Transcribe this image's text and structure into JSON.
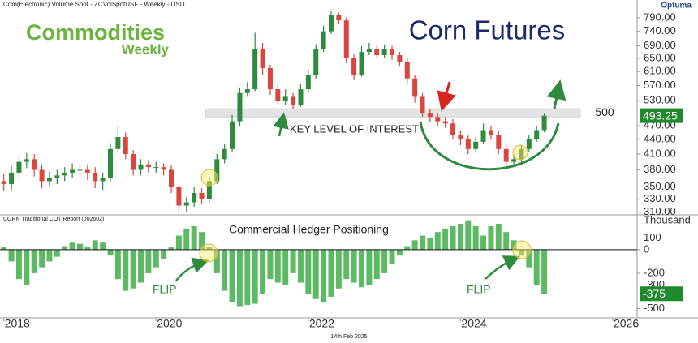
{
  "header": {
    "source": "Com(Electronic) Volume Spot - ZCVolSpotUSF - Weekly - USD",
    "brand": "Optuma",
    "logo_main": "Commodities",
    "logo_sub": "Weekly",
    "date": "14th Feb 2025"
  },
  "chart_data": [
    {
      "type": "candlestick",
      "title": "Corn Futures",
      "annotations": [
        "KEY LEVEL OF INTEREST"
      ],
      "key_level": 500,
      "log": true,
      "up_color": "#2e8b3e",
      "down_color": "#d9453f",
      "xlim": [
        2017.95,
        2026.32
      ],
      "ylim": [
        306,
        834
      ],
      "yticks": [
        {
          "value": 310,
          "label": "310.00"
        },
        {
          "value": 330,
          "label": "330.00"
        },
        {
          "value": 350,
          "label": "350.00"
        },
        {
          "value": 380,
          "label": "380.00"
        },
        {
          "value": 410,
          "label": "410.00"
        },
        {
          "value": 440,
          "label": "440.00"
        },
        {
          "value": 470,
          "label": "470.00"
        },
        {
          "value": 530,
          "label": "530.00"
        },
        {
          "value": 570,
          "label": "570.00"
        },
        {
          "value": 610,
          "label": "610.00"
        },
        {
          "value": 650,
          "label": "650.00"
        },
        {
          "value": 690,
          "label": "690.00"
        },
        {
          "value": 740,
          "label": "740.00"
        },
        {
          "value": 790,
          "label": "790.00"
        }
      ],
      "x": [
        2018,
        2018.1,
        2018.2,
        2018.3,
        2018.4,
        2018.5,
        2018.6,
        2018.7,
        2018.8,
        2018.9,
        2019,
        2019.1,
        2019.2,
        2019.3,
        2019.4,
        2019.5,
        2019.6,
        2019.7,
        2019.8,
        2019.9,
        2020,
        2020.1,
        2020.2,
        2020.3,
        2020.4,
        2020.5,
        2020.6,
        2020.7,
        2020.8,
        2020.9,
        2021,
        2021.1,
        2021.2,
        2021.3,
        2021.4,
        2021.5,
        2021.6,
        2021.7,
        2021.8,
        2021.9,
        2022,
        2022.1,
        2022.2,
        2022.3,
        2022.4,
        2022.5,
        2022.6,
        2022.7,
        2022.8,
        2022.9,
        2023,
        2023.1,
        2023.2,
        2023.3,
        2023.4,
        2023.5,
        2023.6,
        2023.7,
        2023.8,
        2023.9,
        2024,
        2024.1,
        2024.2,
        2024.3,
        2024.4,
        2024.5,
        2024.6,
        2024.7,
        2024.8,
        2024.9,
        2025,
        2025.1
      ],
      "open": [
        360,
        355,
        375,
        395,
        400,
        380,
        360,
        365,
        370,
        375,
        380,
        380,
        375,
        360,
        365,
        420,
        445,
        410,
        380,
        390,
        385,
        385,
        380,
        350,
        320,
        325,
        340,
        330,
        360,
        400,
        420,
        480,
        550,
        560,
        680,
        620,
        560,
        530,
        540,
        520,
        560,
        600,
        680,
        740,
        800,
        780,
        650,
        600,
        670,
        680,
        660,
        680,
        660,
        640,
        590,
        540,
        500,
        490,
        480,
        475,
        450,
        440,
        420,
        435,
        460,
        450,
        420,
        395,
        400,
        420,
        440,
        460
      ],
      "high": [
        372,
        387,
        407,
        412,
        410,
        390,
        377,
        380,
        385,
        392,
        392,
        390,
        385,
        375,
        432,
        470,
        455,
        418,
        400,
        398,
        395,
        392,
        388,
        355,
        333,
        350,
        348,
        368,
        410,
        430,
        495,
        565,
        580,
        735,
        700,
        630,
        575,
        560,
        550,
        575,
        615,
        695,
        760,
        815,
        810,
        790,
        665,
        690,
        700,
        690,
        695,
        690,
        670,
        650,
        600,
        550,
        510,
        500,
        490,
        485,
        460,
        448,
        445,
        475,
        470,
        458,
        428,
        410,
        428,
        450,
        470,
        500
      ],
      "low": [
        343,
        343,
        363,
        383,
        368,
        348,
        350,
        355,
        360,
        365,
        368,
        362,
        348,
        345,
        360,
        410,
        400,
        370,
        370,
        375,
        375,
        370,
        340,
        308,
        311,
        318,
        322,
        325,
        355,
        392,
        415,
        470,
        540,
        555,
        600,
        545,
        520,
        520,
        510,
        515,
        550,
        590,
        670,
        730,
        765,
        635,
        585,
        595,
        660,
        650,
        650,
        645,
        625,
        575,
        525,
        490,
        478,
        470,
        465,
        440,
        428,
        410,
        412,
        430,
        440,
        410,
        385,
        388,
        395,
        415,
        435,
        455
      ],
      "close": [
        355,
        375,
        395,
        400,
        380,
        360,
        365,
        370,
        375,
        380,
        380,
        375,
        360,
        365,
        420,
        445,
        410,
        380,
        390,
        385,
        385,
        380,
        350,
        320,
        325,
        340,
        330,
        360,
        400,
        420,
        480,
        550,
        560,
        680,
        620,
        560,
        530,
        540,
        520,
        560,
        600,
        680,
        740,
        800,
        780,
        650,
        600,
        670,
        680,
        660,
        680,
        660,
        640,
        590,
        540,
        500,
        490,
        480,
        475,
        450,
        440,
        420,
        435,
        460,
        450,
        420,
        395,
        400,
        420,
        440,
        460,
        493.25
      ]
    },
    {
      "type": "bar",
      "title": "Commercial Hedger Positioning",
      "subtitle": "CORN Traditional COT Report (002602)",
      "unit": "Thousand",
      "annotations": [
        "FLIP",
        "FLIP"
      ],
      "color": "#3fae49",
      "xlim": [
        2017.95,
        2026.32
      ],
      "ylim": [
        -580,
        296
      ],
      "yticks": [
        100,
        0,
        -200,
        -300,
        -500
      ],
      "xticks": [
        2018,
        2020,
        2022,
        2024,
        2026
      ],
      "x": [
        2018,
        2018.1,
        2018.2,
        2018.3,
        2018.4,
        2018.5,
        2018.6,
        2018.7,
        2018.8,
        2018.9,
        2019,
        2019.1,
        2019.2,
        2019.3,
        2019.4,
        2019.5,
        2019.6,
        2019.7,
        2019.8,
        2019.9,
        2020,
        2020.1,
        2020.2,
        2020.3,
        2020.4,
        2020.5,
        2020.6,
        2020.7,
        2020.8,
        2020.9,
        2021,
        2021.1,
        2021.2,
        2021.3,
        2021.4,
        2021.5,
        2021.6,
        2021.7,
        2021.8,
        2021.9,
        2022,
        2022.1,
        2022.2,
        2022.3,
        2022.4,
        2022.5,
        2022.6,
        2022.7,
        2022.8,
        2022.9,
        2023,
        2023.1,
        2023.2,
        2023.3,
        2023.4,
        2023.5,
        2023.6,
        2023.7,
        2023.8,
        2023.9,
        2024,
        2024.1,
        2024.2,
        2024.3,
        2024.4,
        2024.5,
        2024.6,
        2024.7,
        2024.8,
        2024.9,
        2025,
        2025.1
      ],
      "values": [
        20,
        -100,
        -250,
        -300,
        -200,
        -150,
        -100,
        -60,
        30,
        60,
        50,
        20,
        80,
        60,
        -50,
        -250,
        -350,
        -330,
        -280,
        -200,
        -150,
        -80,
        20,
        120,
        180,
        200,
        150,
        20,
        -200,
        -350,
        -450,
        -480,
        -470,
        -460,
        -380,
        -250,
        -280,
        -300,
        -200,
        -280,
        -380,
        -420,
        -450,
        -400,
        -330,
        -250,
        -280,
        -320,
        -300,
        -250,
        -200,
        -120,
        -50,
        30,
        80,
        120,
        100,
        150,
        180,
        200,
        220,
        250,
        200,
        120,
        200,
        220,
        150,
        80,
        -50,
        -150,
        -300,
        -375
      ]
    }
  ]
}
